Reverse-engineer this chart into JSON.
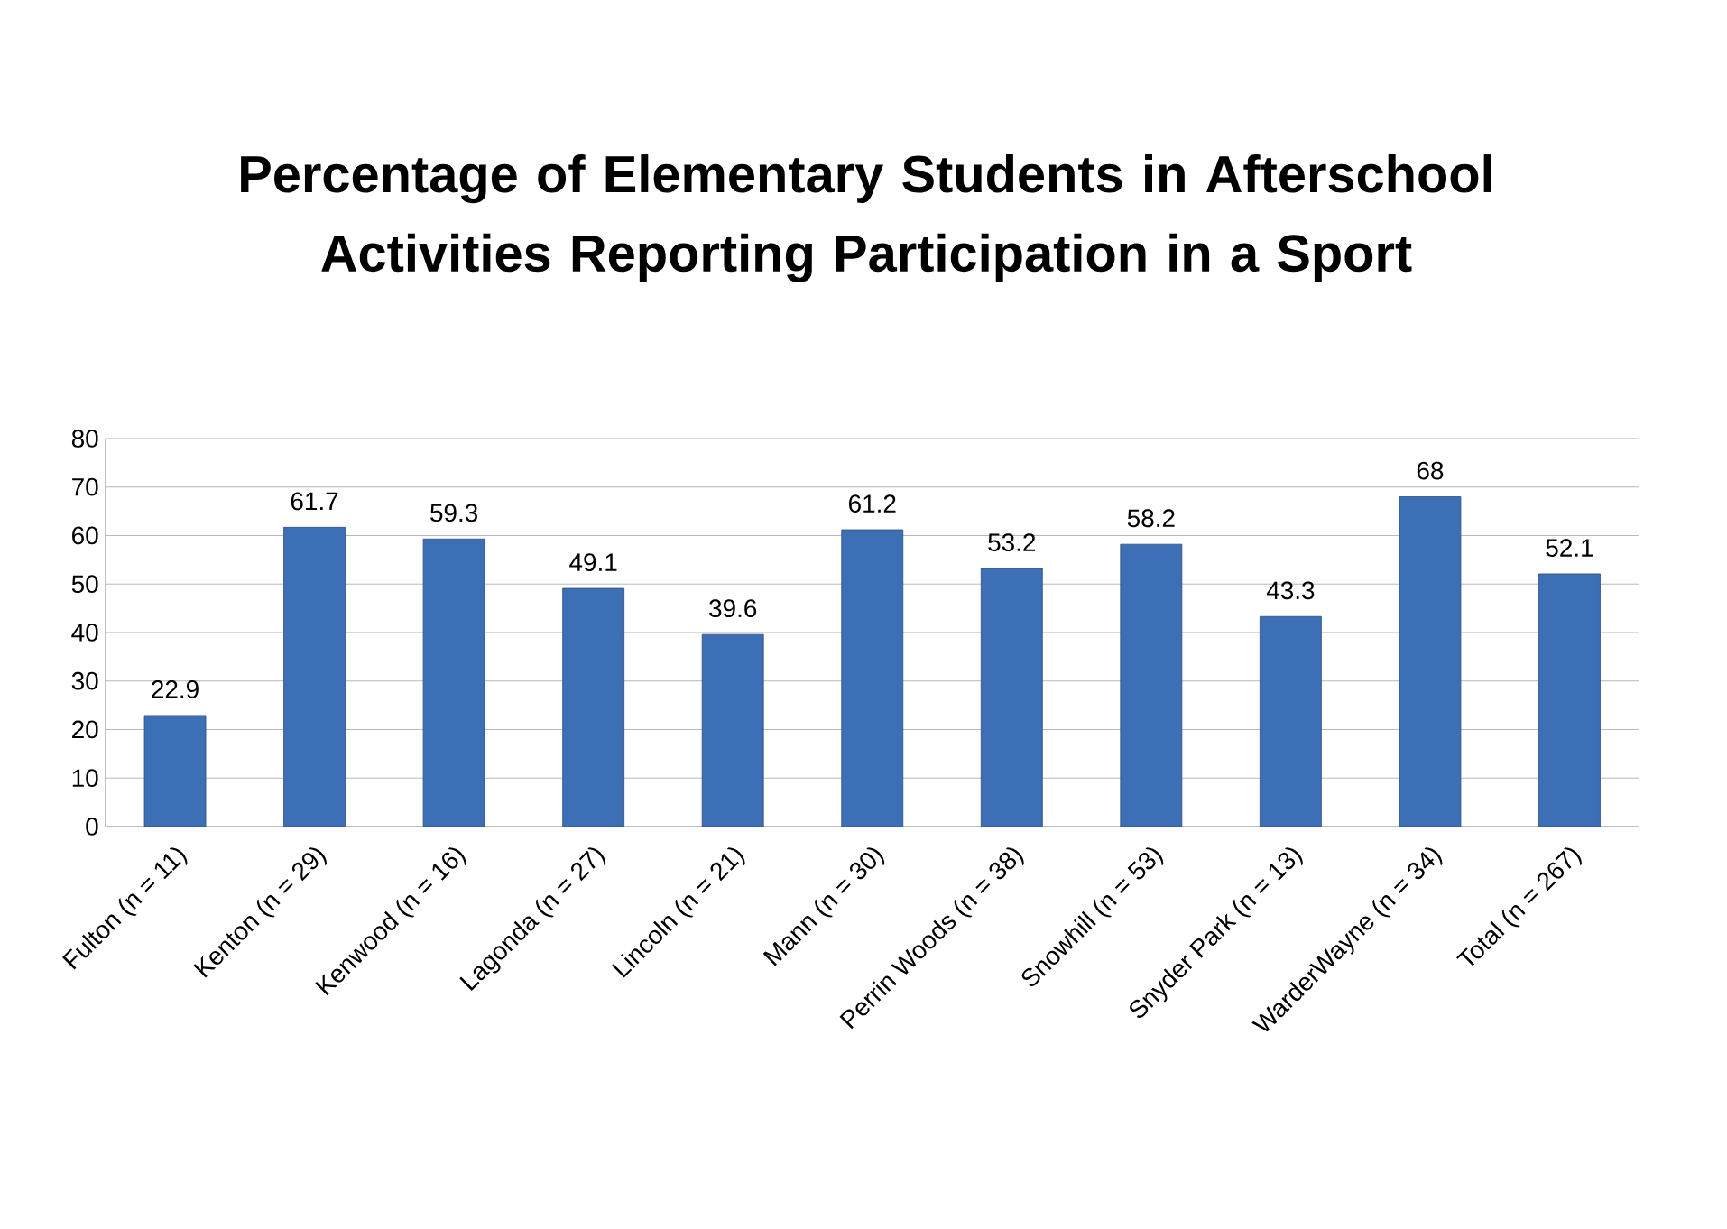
{
  "chart_data": {
    "type": "bar",
    "title": "Percentage of Elementary Students in Afterschool Activities Reporting Participation in a Sport",
    "categories": [
      "Fulton (n = 11)",
      "Kenton (n = 29)",
      "Kenwood (n = 16)",
      "Lagonda (n = 27)",
      "Lincoln (n = 21)",
      "Mann (n = 30)",
      "Perrin Woods (n = 38)",
      "Snowhill (n = 53)",
      "Snyder Park (n = 13)",
      "WarderWayne (n = 34)",
      "Total (n = 267)"
    ],
    "values": [
      22.9,
      61.7,
      59.3,
      49.1,
      39.6,
      61.2,
      53.2,
      58.2,
      43.3,
      68,
      52.1
    ],
    "color": "#3d6fb6",
    "ylim": [
      0,
      80
    ],
    "yticks": [
      0,
      10,
      20,
      30,
      40,
      50,
      60,
      70,
      80
    ],
    "grid": "y",
    "data_labels": true
  }
}
